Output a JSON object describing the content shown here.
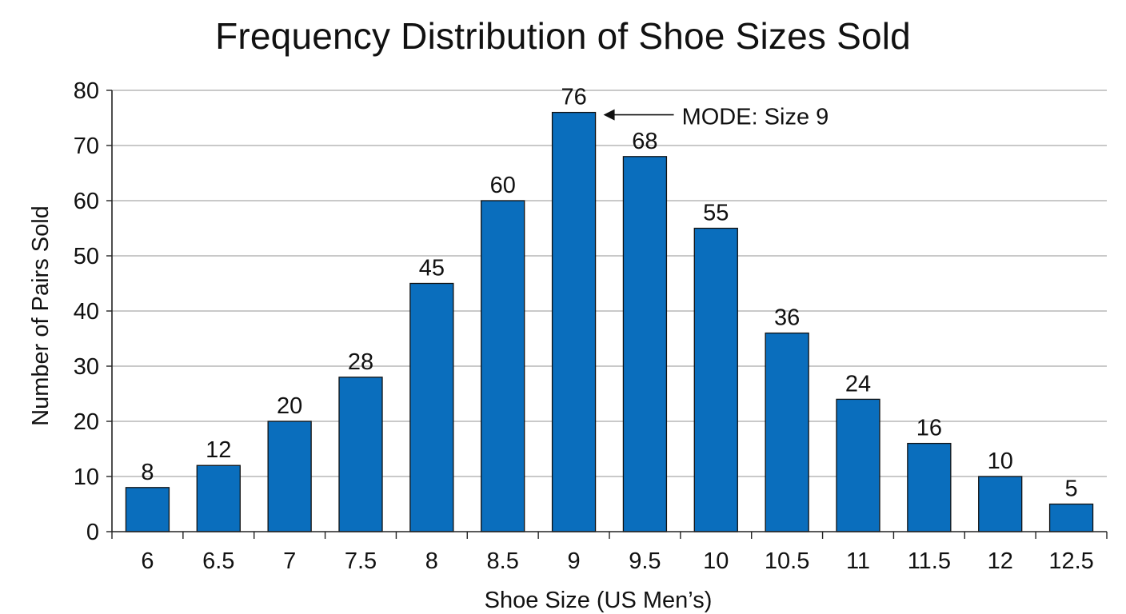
{
  "chart_data": {
    "type": "bar",
    "title": "Frequency Distribution of Shoe Sizes Sold",
    "xlabel": "Shoe Size (US Men’s)",
    "ylabel": "Number of Pairs Sold",
    "categories": [
      "6",
      "6.5",
      "7",
      "7.5",
      "8",
      "8.5",
      "9",
      "9.5",
      "10",
      "10.5",
      "11",
      "11.5",
      "12",
      "12.5"
    ],
    "values": [
      8,
      12,
      20,
      28,
      45,
      60,
      76,
      68,
      55,
      36,
      24,
      16,
      10,
      5
    ],
    "ylim": [
      0,
      80
    ],
    "yticks": [
      0,
      10,
      20,
      30,
      40,
      50,
      60,
      70,
      80
    ],
    "grid": true,
    "bar_color": "#0a6ebd",
    "data_labels": true,
    "annotation": {
      "text": "MODE: Size 9",
      "category": "9"
    }
  }
}
